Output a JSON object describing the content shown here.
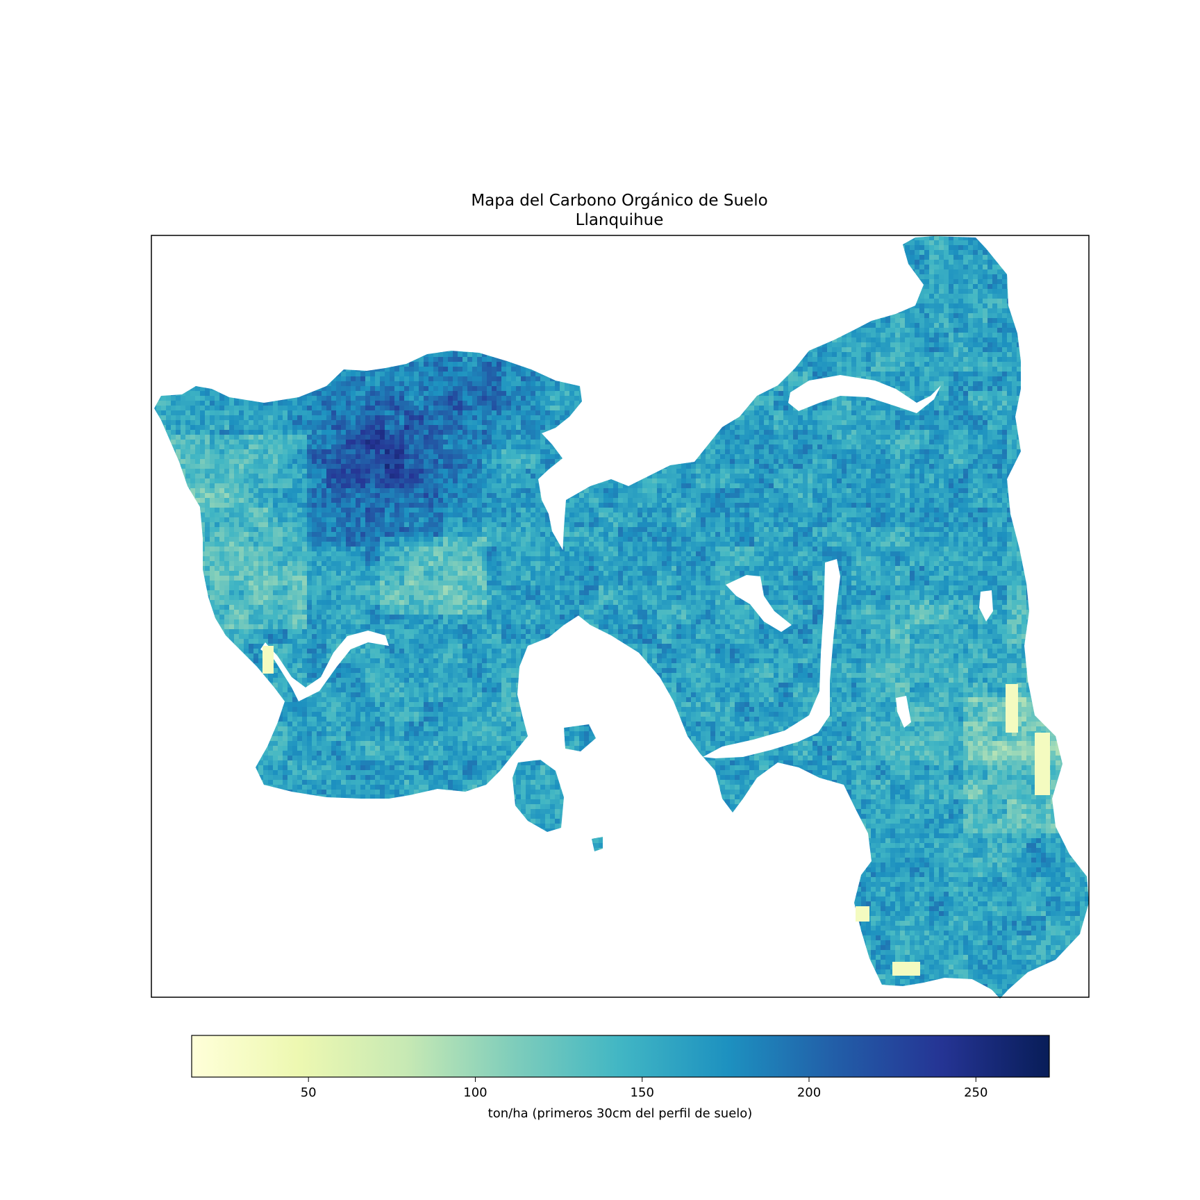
{
  "chart_data": {
    "type": "heatmap",
    "title": "Mapa del Carbono Orgánico de Suelo",
    "subtitle": "Llanquihue",
    "colormap": "YlGnBu",
    "colormap_stops": [
      "#ffffd9",
      "#edf8b1",
      "#c7e9b4",
      "#7fcdbb",
      "#41b6c4",
      "#1d91c0",
      "#225ea8",
      "#253494",
      "#081d58"
    ],
    "no_data_color": "#ffffff",
    "value_range": [
      15,
      272
    ],
    "colorbar": {
      "orientation": "horizontal",
      "ticks": [
        50,
        100,
        150,
        200,
        250
      ],
      "tick_labels": [
        "50",
        "100",
        "150",
        "200",
        "250"
      ],
      "label": "ton/ha (primeros 30cm del perfil de suelo)"
    },
    "axes_visible": false,
    "regions": [
      {
        "name": "",
        "typical_value": 180
      },
      {
        "name": "",
        "typical_value": 170
      }
    ]
  }
}
